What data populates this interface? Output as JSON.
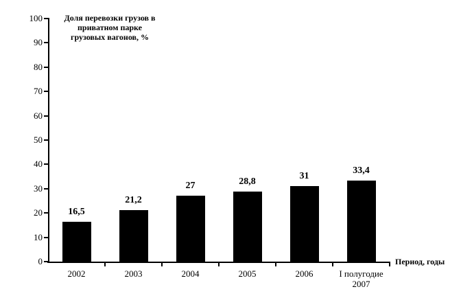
{
  "chart_data": {
    "type": "bar",
    "title": "Доля перевозки грузов в приватном парке грузовых вагонов, %",
    "title_lines": [
      "Доля перевозки грузов в",
      "приватном парке",
      "грузовых вагонов, %"
    ],
    "xlabel": "Период, годы",
    "ylabel": "",
    "categories": [
      "2002",
      "2003",
      "2004",
      "2005",
      "2006",
      "I полугодие 2007"
    ],
    "category_lines": [
      [
        "2002"
      ],
      [
        "2003"
      ],
      [
        "2004"
      ],
      [
        "2005"
      ],
      [
        "2006"
      ],
      [
        "I полугодие",
        "2007"
      ]
    ],
    "values": [
      16.5,
      21.2,
      27,
      28.8,
      31,
      33.4
    ],
    "value_labels": [
      "16,5",
      "21,2",
      "27",
      "28,8",
      "31",
      "33,4"
    ],
    "ylim": [
      0,
      100
    ],
    "ytick_step": 10,
    "grid": false,
    "legend": null,
    "bar_color": "#000000",
    "axis_color": "#000000",
    "background": "#ffffff"
  }
}
